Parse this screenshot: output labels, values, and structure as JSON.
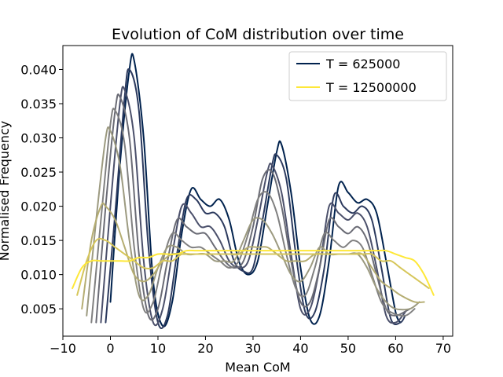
{
  "chart_data": {
    "type": "line",
    "title": "Evolution of CoM distribution over time",
    "xlabel": "Mean CoM",
    "ylabel": "Normalised Frequency",
    "xlim": [
      -10,
      72
    ],
    "ylim": [
      0.001,
      0.0435
    ],
    "xticks": [
      -10,
      0,
      10,
      20,
      30,
      40,
      50,
      60,
      70
    ],
    "yticks": [
      0.005,
      0.01,
      0.015,
      0.02,
      0.025,
      0.03,
      0.035,
      0.04
    ],
    "xtick_labels": [
      "−10",
      "0",
      "10",
      "20",
      "30",
      "40",
      "50",
      "60",
      "70"
    ],
    "ytick_labels": [
      "0.005",
      "0.010",
      "0.015",
      "0.020",
      "0.025",
      "0.030",
      "0.035",
      "0.040"
    ],
    "grid": false,
    "legend_position": "top-right",
    "legend": [
      {
        "label": "T = 625000",
        "color": "#00224e"
      },
      {
        "label": "T = 12500000",
        "color": "#fee838"
      }
    ],
    "series": [
      {
        "color": "#00224e",
        "x": [
          0,
          2,
          4,
          5,
          7,
          9,
          11,
          13,
          15,
          17,
          19,
          21,
          23,
          25,
          27,
          29,
          31,
          33,
          35,
          36,
          38,
          40,
          42,
          44,
          46,
          48,
          50,
          52,
          54,
          56,
          58,
          60,
          61
        ],
        "y": [
          0.006,
          0.026,
          0.04,
          0.0413,
          0.03,
          0.009,
          0.0025,
          0.006,
          0.016,
          0.0225,
          0.021,
          0.02,
          0.021,
          0.018,
          0.012,
          0.01,
          0.012,
          0.02,
          0.028,
          0.029,
          0.022,
          0.011,
          0.0035,
          0.004,
          0.012,
          0.023,
          0.022,
          0.0205,
          0.021,
          0.019,
          0.012,
          0.0045,
          0.003
        ]
      },
      {
        "color": "#2c3a5e",
        "x": [
          -1,
          1,
          3,
          4,
          6,
          8,
          10,
          12,
          14,
          16,
          18,
          20,
          22,
          24,
          26,
          28,
          30,
          32,
          34,
          35,
          37,
          39,
          41,
          43,
          45,
          47,
          49,
          51,
          53,
          55,
          57,
          59,
          61,
          62
        ],
        "y": [
          0.003,
          0.019,
          0.036,
          0.04,
          0.034,
          0.014,
          0.003,
          0.004,
          0.013,
          0.021,
          0.021,
          0.019,
          0.019,
          0.017,
          0.012,
          0.0105,
          0.011,
          0.018,
          0.026,
          0.0275,
          0.024,
          0.013,
          0.0045,
          0.0045,
          0.011,
          0.0215,
          0.02,
          0.019,
          0.02,
          0.018,
          0.011,
          0.0035,
          0.003,
          0.004
        ]
      },
      {
        "color": "#4b506b",
        "x": [
          -2,
          0,
          2,
          3,
          5,
          7,
          9,
          11,
          13,
          15,
          17,
          19,
          21,
          23,
          25,
          27,
          29,
          31,
          33,
          34,
          36,
          38,
          40,
          42,
          44,
          46,
          48,
          50,
          52,
          54,
          56,
          58,
          60,
          62
        ],
        "y": [
          0.003,
          0.02,
          0.035,
          0.037,
          0.03,
          0.012,
          0.003,
          0.005,
          0.013,
          0.02,
          0.019,
          0.017,
          0.017,
          0.015,
          0.012,
          0.011,
          0.012,
          0.018,
          0.025,
          0.026,
          0.022,
          0.013,
          0.005,
          0.005,
          0.011,
          0.02,
          0.019,
          0.018,
          0.019,
          0.017,
          0.011,
          0.004,
          0.003,
          0.0045
        ]
      },
      {
        "color": "#6a6b75",
        "x": [
          -3,
          -1,
          1,
          2,
          4,
          6,
          8,
          10,
          12,
          14,
          16,
          18,
          20,
          22,
          24,
          26,
          28,
          30,
          32,
          34,
          36,
          38,
          40,
          42,
          44,
          46,
          48,
          50,
          52,
          54,
          56,
          58,
          60,
          63
        ],
        "y": [
          0.003,
          0.02,
          0.034,
          0.036,
          0.03,
          0.013,
          0.004,
          0.005,
          0.012,
          0.018,
          0.017,
          0.016,
          0.016,
          0.014,
          0.012,
          0.011,
          0.012,
          0.017,
          0.024,
          0.025,
          0.02,
          0.012,
          0.006,
          0.006,
          0.011,
          0.018,
          0.017,
          0.016,
          0.017,
          0.015,
          0.01,
          0.005,
          0.004,
          0.005
        ]
      },
      {
        "color": "#808080",
        "x": [
          -4,
          -2,
          0,
          1,
          3,
          5,
          7,
          9,
          11,
          13,
          15,
          17,
          19,
          21,
          23,
          25,
          27,
          29,
          31,
          33,
          35,
          37,
          39,
          41,
          43,
          45,
          47,
          49,
          51,
          53,
          55,
          57,
          59,
          62,
          64
        ],
        "y": [
          0.003,
          0.018,
          0.032,
          0.034,
          0.029,
          0.014,
          0.005,
          0.006,
          0.012,
          0.016,
          0.015,
          0.014,
          0.014,
          0.013,
          0.012,
          0.011,
          0.012,
          0.016,
          0.021,
          0.022,
          0.019,
          0.013,
          0.008,
          0.007,
          0.011,
          0.016,
          0.015,
          0.014,
          0.015,
          0.014,
          0.01,
          0.006,
          0.0045,
          0.004,
          0.005
        ]
      },
      {
        "color": "#9c9a80",
        "x": [
          -5,
          -3,
          -1,
          0,
          2,
          4,
          6,
          8,
          10,
          12,
          14,
          16,
          18,
          20,
          22,
          24,
          26,
          28,
          30,
          32,
          34,
          36,
          38,
          40,
          42,
          44,
          46,
          48,
          50,
          52,
          54,
          56,
          58,
          60,
          63,
          65
        ],
        "y": [
          0.004,
          0.018,
          0.03,
          0.031,
          0.026,
          0.015,
          0.007,
          0.007,
          0.011,
          0.014,
          0.014,
          0.013,
          0.013,
          0.013,
          0.012,
          0.012,
          0.012,
          0.015,
          0.018,
          0.018,
          0.016,
          0.013,
          0.01,
          0.009,
          0.011,
          0.014,
          0.013,
          0.013,
          0.013,
          0.013,
          0.011,
          0.008,
          0.006,
          0.005,
          0.005,
          0.006
        ]
      },
      {
        "color": "#b5ad72",
        "x": [
          -6,
          -4,
          -2,
          -1,
          1,
          3,
          5,
          7,
          9,
          11,
          13,
          15,
          17,
          19,
          21,
          23,
          25,
          27,
          29,
          31,
          33,
          35,
          37,
          39,
          41,
          43,
          45,
          47,
          49,
          51,
          53,
          55,
          57,
          59,
          61,
          64,
          66
        ],
        "y": [
          0.005,
          0.015,
          0.02,
          0.02,
          0.018,
          0.014,
          0.01,
          0.009,
          0.01,
          0.012,
          0.013,
          0.013,
          0.013,
          0.013,
          0.013,
          0.013,
          0.013,
          0.013,
          0.014,
          0.014,
          0.014,
          0.013,
          0.012,
          0.012,
          0.012,
          0.013,
          0.013,
          0.013,
          0.013,
          0.013,
          0.013,
          0.011,
          0.009,
          0.008,
          0.007,
          0.006,
          0.006
        ]
      },
      {
        "color": "#d6c65a",
        "x": [
          -7,
          -5,
          -3,
          -1,
          1,
          3,
          5,
          7,
          9,
          11,
          13,
          15,
          17,
          19,
          21,
          23,
          25,
          27,
          29,
          31,
          33,
          35,
          37,
          39,
          41,
          43,
          45,
          47,
          49,
          51,
          53,
          55,
          57,
          59,
          61,
          63,
          65,
          67
        ],
        "y": [
          0.007,
          0.012,
          0.015,
          0.015,
          0.014,
          0.013,
          0.012,
          0.011,
          0.011,
          0.012,
          0.012,
          0.013,
          0.013,
          0.013,
          0.013,
          0.013,
          0.013,
          0.013,
          0.013,
          0.013,
          0.013,
          0.013,
          0.013,
          0.013,
          0.013,
          0.013,
          0.013,
          0.013,
          0.013,
          0.013,
          0.013,
          0.013,
          0.012,
          0.012,
          0.011,
          0.01,
          0.009,
          0.008
        ]
      },
      {
        "color": "#fee838",
        "x": [
          -8,
          -6,
          -4,
          -2,
          0,
          2,
          4,
          6,
          8,
          10,
          12,
          14,
          16,
          18,
          20,
          22,
          24,
          26,
          28,
          30,
          32,
          34,
          36,
          38,
          40,
          42,
          44,
          46,
          48,
          50,
          52,
          54,
          56,
          58,
          60,
          62,
          64,
          66,
          68
        ],
        "y": [
          0.008,
          0.011,
          0.012,
          0.012,
          0.012,
          0.012,
          0.012,
          0.0125,
          0.0125,
          0.013,
          0.013,
          0.013,
          0.0135,
          0.0135,
          0.0135,
          0.0135,
          0.0135,
          0.0135,
          0.0135,
          0.0135,
          0.0135,
          0.0135,
          0.0135,
          0.0135,
          0.0135,
          0.0135,
          0.0135,
          0.0135,
          0.0135,
          0.0135,
          0.0135,
          0.0135,
          0.0135,
          0.0135,
          0.013,
          0.0125,
          0.012,
          0.01,
          0.007
        ]
      }
    ]
  }
}
